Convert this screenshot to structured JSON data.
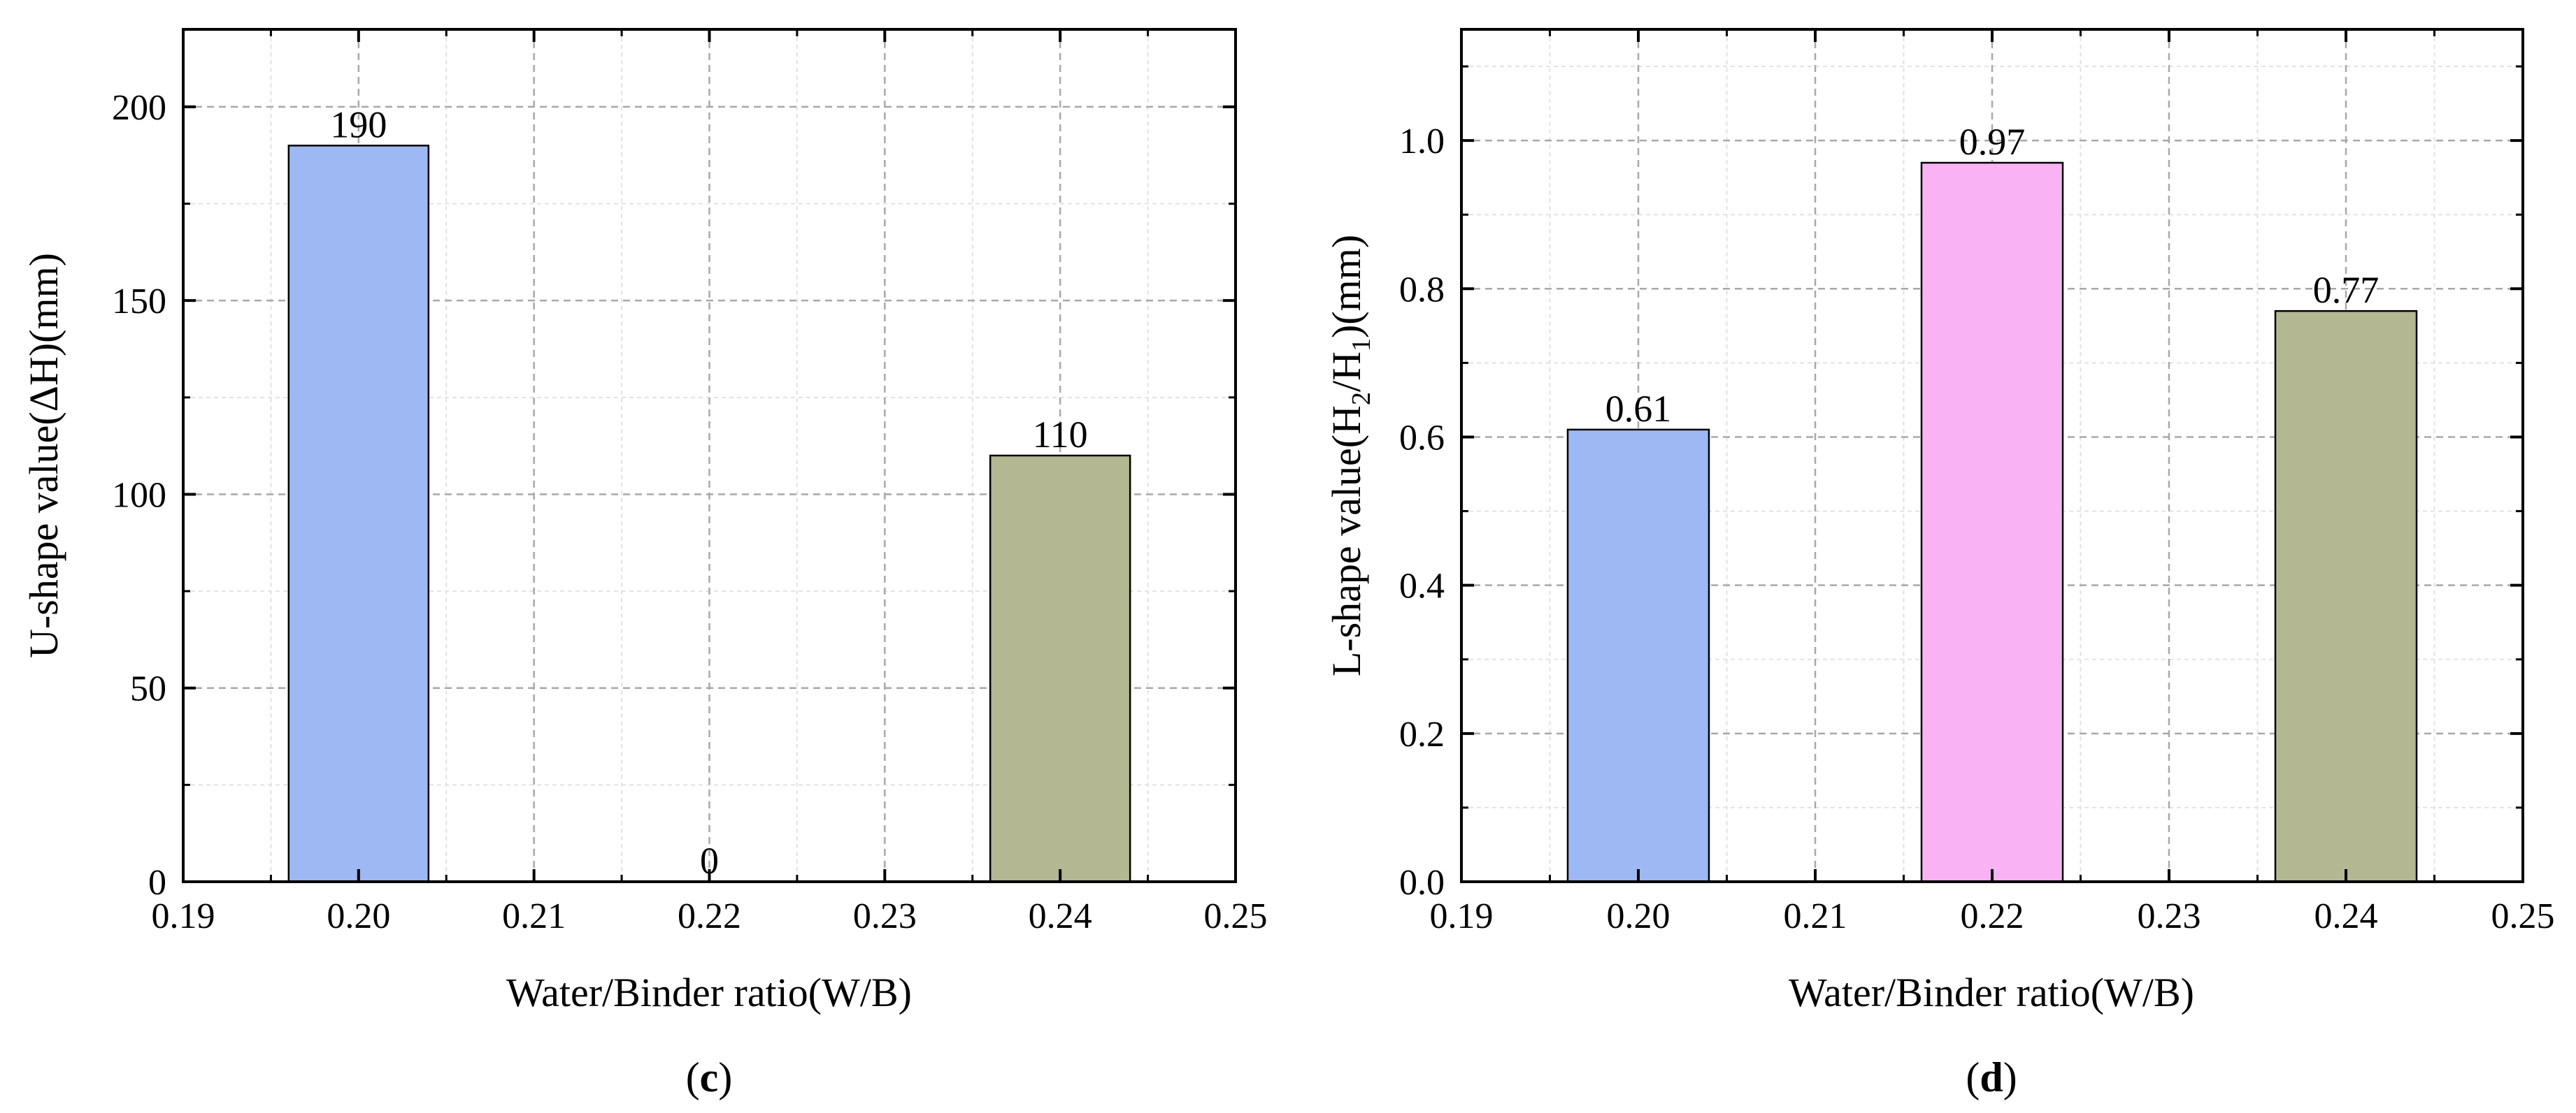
{
  "charts": [
    {
      "panel_label": {
        "open": "(",
        "letter": "c",
        "close": ")"
      },
      "chart_data": {
        "type": "bar",
        "x": [
          0.2,
          0.22,
          0.24
        ],
        "values": [
          190,
          0,
          110
        ],
        "data_labels": [
          "190",
          "0",
          "110"
        ],
        "colors": [
          "#9db8f2",
          "#f9b3f4",
          "#b3b893"
        ],
        "xlabel": "Water/Binder ratio(W/B)",
        "ylabel": "U-shape value(ΔH)(mm)",
        "xlim": [
          0.19,
          0.25
        ],
        "ylim": [
          0,
          220
        ],
        "x_ticks": [
          "0.19",
          "0.20",
          "0.21",
          "0.22",
          "0.23",
          "0.24",
          "0.25"
        ],
        "y_ticks": [
          "0",
          "50",
          "100",
          "150",
          "200"
        ],
        "grid": true
      }
    },
    {
      "panel_label": {
        "open": "(",
        "letter": "d",
        "close": ")"
      },
      "chart_data": {
        "type": "bar",
        "x": [
          0.2,
          0.22,
          0.24
        ],
        "values": [
          0.61,
          0.97,
          0.77
        ],
        "data_labels": [
          "0.61",
          "0.97",
          "0.77"
        ],
        "colors": [
          "#9db8f2",
          "#f9b3f4",
          "#b3b893"
        ],
        "xlabel": "Water/Binder ratio(W/B)",
        "ylabel": {
          "prefix": "L-shape value(H",
          "sub1": "2",
          "mid": "/H",
          "sub2": "1",
          "suffix": ")(mm)"
        },
        "xlim": [
          0.19,
          0.25
        ],
        "ylim": [
          0,
          1.15
        ],
        "x_ticks": [
          "0.19",
          "0.20",
          "0.21",
          "0.22",
          "0.23",
          "0.24",
          "0.25"
        ],
        "y_ticks": [
          "0.0",
          "0.2",
          "0.4",
          "0.6",
          "0.8",
          "1.0"
        ],
        "grid": true
      }
    }
  ]
}
